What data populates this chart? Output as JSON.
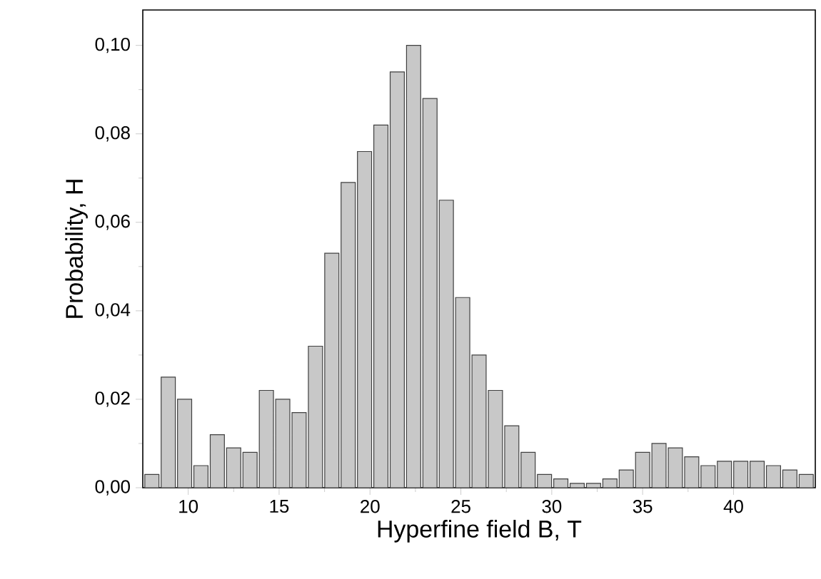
{
  "chart_data": {
    "type": "bar",
    "xlabel": "Hyperfine field B, T",
    "ylabel": "Probability, H",
    "color": "#c8c8c8",
    "x": [
      8,
      8.9,
      9.8,
      10.7,
      11.6,
      12.5,
      13.4,
      14.3,
      15.2,
      16.1,
      17,
      17.9,
      18.8,
      19.7,
      20.6,
      21.5,
      22.4,
      23.3,
      24.2,
      25.1,
      26,
      26.9,
      27.8,
      28.7,
      29.6,
      30.5,
      31.4,
      32.3,
      33.2,
      34.1,
      35,
      35.9,
      36.8,
      37.7,
      38.6,
      39.5,
      40.4,
      41.3,
      42.2,
      43.1,
      44
    ],
    "values": [
      0.003,
      0.025,
      0.02,
      0.005,
      0.012,
      0.009,
      0.008,
      0.022,
      0.02,
      0.017,
      0.032,
      0.053,
      0.069,
      0.076,
      0.082,
      0.094,
      0.1,
      0.088,
      0.065,
      0.043,
      0.03,
      0.022,
      0.014,
      0.008,
      0.003,
      0.002,
      0.001,
      0.001,
      0.002,
      0.004,
      0.008,
      0.01,
      0.009,
      0.007,
      0.005,
      0.006,
      0.006,
      0.006,
      0.005,
      0.004,
      0.003
    ],
    "xlim": [
      7.5,
      44.5
    ],
    "ylim": [
      0,
      0.108
    ],
    "xticks": [
      10,
      15,
      20,
      25,
      30,
      35,
      40
    ],
    "yticks": [
      {
        "value": 0,
        "label": "0,00"
      },
      {
        "value": 0.02,
        "label": "0,02"
      },
      {
        "value": 0.04,
        "label": "0,04"
      },
      {
        "value": 0.06,
        "label": "0,06"
      },
      {
        "value": 0.08,
        "label": "0,08"
      },
      {
        "value": 0.1,
        "label": "0,10"
      }
    ],
    "grid": false
  }
}
